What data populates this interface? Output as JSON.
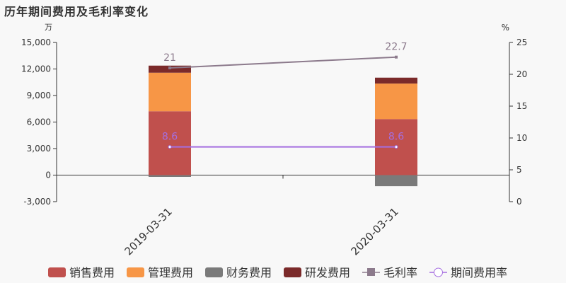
{
  "chart_data": {
    "type": "bar",
    "title": "历年期间费用及毛利率变化",
    "left_unit": "万",
    "right_unit": "%",
    "categories": [
      "2019-03-31",
      "2020-03-31"
    ],
    "ylim": [
      -3000,
      15000
    ],
    "yticks": [
      "-3,000",
      "0",
      "3,000",
      "6,000",
      "9,000",
      "12,000",
      "15,000"
    ],
    "y2lim": [
      0,
      25
    ],
    "y2ticks": [
      "0",
      "5",
      "10",
      "15",
      "20",
      "25"
    ],
    "series": [
      {
        "name": "销售费用",
        "type": "bar",
        "color": "#c0504d",
        "values": [
          7220,
          6340
        ]
      },
      {
        "name": "管理费用",
        "type": "bar",
        "color": "#f79646",
        "values": [
          4360,
          4010
        ]
      },
      {
        "name": "财务费用",
        "type": "bar",
        "color": "#7a7a7a",
        "values": [
          -200,
          -1250
        ]
      },
      {
        "name": "研发费用",
        "type": "bar",
        "color": "#7b2a2a",
        "values": [
          800,
          670
        ]
      },
      {
        "name": "毛利率",
        "type": "line",
        "color": "#8c7a8c",
        "axis": "right",
        "values": [
          21,
          22.7
        ],
        "labels": [
          "21",
          "22.7"
        ]
      },
      {
        "name": "期间费用率",
        "type": "line",
        "color": "#a56ee0",
        "axis": "right",
        "values": [
          8.6,
          8.6
        ],
        "labels": [
          "8.6",
          "8.6"
        ]
      }
    ],
    "legend": "bottom"
  }
}
